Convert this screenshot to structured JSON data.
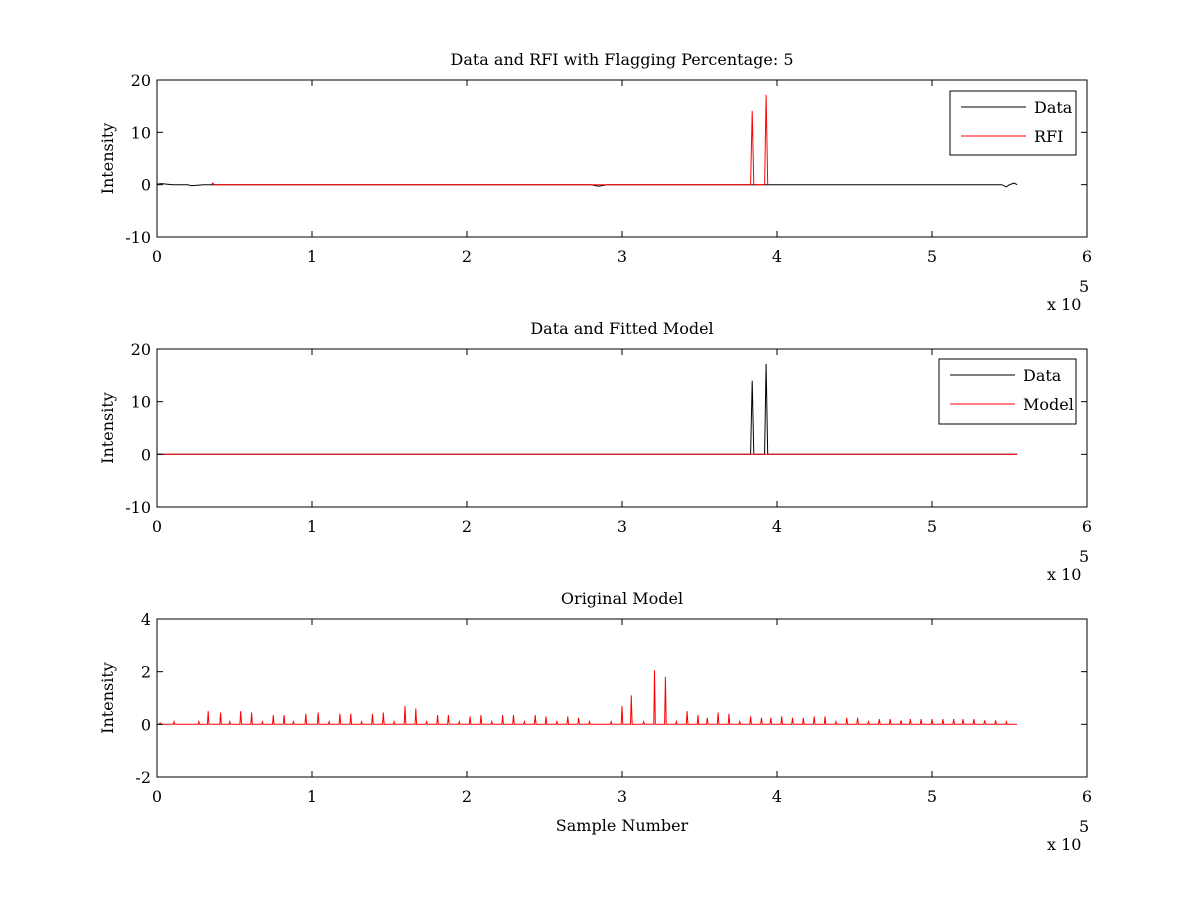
{
  "chart_data": [
    {
      "type": "line",
      "title": "Data and RFI with Flagging Percentage: 5",
      "xlabel": "",
      "ylabel": "Intensity",
      "xlim": [
        0,
        6
      ],
      "ylim": [
        -10,
        20
      ],
      "xticks": [
        "0",
        "1",
        "2",
        "3",
        "4",
        "5",
        "6"
      ],
      "yticks": [
        "-10",
        "0",
        "10",
        "20"
      ],
      "x_multiplier": {
        "base": "x 10",
        "exponent": "5"
      },
      "grid": false,
      "legend_position": "top-right",
      "series": [
        {
          "name": "Data",
          "color": "#000000",
          "x": [
            0.0,
            0.03,
            0.06,
            0.1,
            0.2,
            0.22,
            0.3,
            0.4,
            0.6,
            1.0,
            1.4,
            1.67,
            2.0,
            2.5,
            2.8,
            2.85,
            2.9,
            3.0,
            3.2,
            3.3,
            3.6,
            3.8,
            4.0,
            4.5,
            5.0,
            5.45,
            5.48,
            5.5,
            5.53,
            5.55
          ],
          "y": [
            0.1,
            0.2,
            0.1,
            0.0,
            0.0,
            -0.2,
            0.0,
            0.0,
            0.0,
            0.0,
            0.0,
            0.0,
            0.0,
            0.0,
            0.0,
            -0.3,
            0.0,
            0.0,
            0.0,
            0.0,
            0.0,
            0.0,
            0.0,
            0.0,
            0.0,
            0.0,
            -0.4,
            0.0,
            0.3,
            0.0
          ]
        },
        {
          "name": "RFI",
          "color": "#ff0000",
          "x": [
            0.35,
            0.36,
            0.37,
            3.83,
            3.84,
            3.85,
            3.92,
            3.93,
            3.94
          ],
          "y": [
            0,
            0.3,
            0,
            0,
            14.1,
            0,
            0,
            17.2,
            0
          ]
        }
      ]
    },
    {
      "type": "line",
      "title": "Data and Fitted Model",
      "xlabel": "",
      "ylabel": "Intensity",
      "xlim": [
        0,
        6
      ],
      "ylim": [
        -10,
        20
      ],
      "xticks": [
        "0",
        "1",
        "2",
        "3",
        "4",
        "5",
        "6"
      ],
      "yticks": [
        "-10",
        "0",
        "10",
        "20"
      ],
      "x_multiplier": {
        "base": "x 10",
        "exponent": "5"
      },
      "grid": false,
      "legend_position": "top-right",
      "series": [
        {
          "name": "Data",
          "color": "#000000",
          "x": [
            0.0,
            0.5,
            1.0,
            1.5,
            2.0,
            2.5,
            2.9,
            3.0,
            3.5,
            3.7,
            3.83,
            3.84,
            3.85,
            3.92,
            3.93,
            3.94,
            4.2,
            4.5,
            5.0,
            5.45,
            5.55
          ],
          "y": [
            0,
            0,
            0,
            0,
            0,
            0,
            0,
            0,
            0,
            0,
            0,
            14.0,
            0,
            0,
            17.2,
            0,
            0,
            0,
            0,
            0,
            0
          ]
        },
        {
          "name": "Model",
          "color": "#ff0000",
          "x": [
            0.0,
            0.5,
            1.0,
            1.5,
            2.0,
            2.5,
            3.0,
            3.5,
            4.0,
            4.5,
            5.0,
            5.55
          ],
          "y": [
            0,
            0,
            0,
            0,
            0,
            0,
            0,
            0,
            0,
            0,
            0,
            0
          ]
        }
      ]
    },
    {
      "type": "line",
      "title": "Original Model",
      "xlabel": "Sample Number",
      "ylabel": "Intensity",
      "xlim": [
        0,
        6
      ],
      "ylim": [
        -2,
        4
      ],
      "xticks": [
        "0",
        "1",
        "2",
        "3",
        "4",
        "5",
        "6"
      ],
      "yticks": [
        "-2",
        "0",
        "2",
        "4"
      ],
      "x_multiplier": {
        "base": "x 10",
        "exponent": "5"
      },
      "grid": false,
      "series": [
        {
          "color": "#ff0000",
          "spikes_x": [
            0.02,
            0.11,
            0.27,
            0.33,
            0.41,
            0.47,
            0.54,
            0.61,
            0.68,
            0.75,
            0.82,
            0.88,
            0.96,
            1.04,
            1.11,
            1.18,
            1.25,
            1.32,
            1.39,
            1.46,
            1.53,
            1.6,
            1.67,
            1.74,
            1.81,
            1.88,
            1.95,
            2.02,
            2.09,
            2.16,
            2.23,
            2.3,
            2.37,
            2.44,
            2.51,
            2.58,
            2.65,
            2.72,
            2.79,
            2.93,
            3.0,
            3.06,
            3.14,
            3.21,
            3.28,
            3.35,
            3.42,
            3.49,
            3.55,
            3.62,
            3.69,
            3.76,
            3.83,
            3.9,
            3.96,
            4.03,
            4.1,
            4.17,
            4.24,
            4.31,
            4.38,
            4.45,
            4.52,
            4.59,
            4.66,
            4.73,
            4.8,
            4.86,
            4.93,
            5.0,
            5.07,
            5.14,
            5.2,
            5.27,
            5.34,
            5.41,
            5.48
          ],
          "spikes_y": [
            0.05,
            0.1,
            0.1,
            0.5,
            0.45,
            0.1,
            0.5,
            0.45,
            0.1,
            0.35,
            0.35,
            0.1,
            0.4,
            0.45,
            0.1,
            0.4,
            0.4,
            0.1,
            0.4,
            0.45,
            0.1,
            0.7,
            0.6,
            0.1,
            0.35,
            0.35,
            0.1,
            0.3,
            0.35,
            0.1,
            0.35,
            0.35,
            0.1,
            0.35,
            0.3,
            0.1,
            0.3,
            0.25,
            0.1,
            0.1,
            0.7,
            1.1,
            0.1,
            2.05,
            1.8,
            0.1,
            0.5,
            0.35,
            0.25,
            0.45,
            0.4,
            0.1,
            0.3,
            0.25,
            0.25,
            0.3,
            0.25,
            0.25,
            0.3,
            0.3,
            0.1,
            0.25,
            0.25,
            0.1,
            0.2,
            0.2,
            0.15,
            0.2,
            0.2,
            0.2,
            0.2,
            0.2,
            0.2,
            0.2,
            0.15,
            0.15,
            0.1
          ],
          "x_end": 5.55
        }
      ]
    }
  ]
}
